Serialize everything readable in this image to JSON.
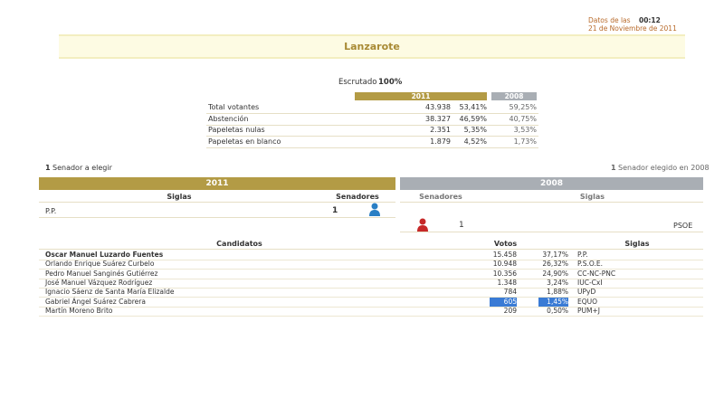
{
  "header": {
    "datos_label": "Datos de las",
    "time": "00:12",
    "date": "21 de Noviembre de 2011"
  },
  "title": "Lanzarote",
  "escrutado": {
    "label": "Escrutado",
    "value": "100%"
  },
  "summary": {
    "headers": [
      "2011",
      "2008"
    ],
    "rows": [
      [
        "Total votantes",
        "43.938",
        "53,41%",
        "59,25%"
      ],
      [
        "Abstención",
        "38.327",
        "46,59%",
        "40,75%"
      ],
      [
        "Papeletas nulas",
        "2.351",
        "5,35%",
        "3,53%"
      ],
      [
        "Papeletas en blanco",
        "1.879",
        "4,52%",
        "1,73%"
      ]
    ]
  },
  "senators": {
    "left_note": {
      "count": "1",
      "text": "Senador a elegir"
    },
    "right_note": {
      "count": "1",
      "text": "Senador elegido en 2008"
    },
    "year_2011": "2011",
    "year_2008": "2008",
    "headers_2011": [
      "Siglas",
      "Senadores"
    ],
    "headers_2008": [
      "Senadores",
      "Siglas"
    ],
    "rows_2011": [
      [
        "P.P.",
        "1"
      ]
    ],
    "rows_2008": [
      [
        "1",
        "PSOE"
      ]
    ]
  },
  "candidates": {
    "headers": [
      "Candidatos",
      "Votos",
      "Siglas"
    ],
    "rows": [
      [
        "Oscar Manuel Luzardo Fuentes",
        "15.458",
        "37,17%",
        "P.P."
      ],
      [
        "Orlando Enrique Suárez Curbelo",
        "10.948",
        "26,32%",
        "P.S.O.E."
      ],
      [
        "Pedro Manuel Sanginés Gutiérrez",
        "10.356",
        "24,90%",
        "CC-NC-PNC"
      ],
      [
        "José Manuel Vázquez Rodríguez",
        "1.348",
        "3,24%",
        "IUC-CxI"
      ],
      [
        "Ignacio Sáenz de Santa María Elizalde",
        "784",
        "1,88%",
        "UPyD"
      ],
      [
        "Gabriel Ángel Suárez Cabrera",
        "605",
        "1,45%",
        "EQUO"
      ],
      [
        "Martín Moreno Brito",
        "209",
        "0,50%",
        "PUM+J"
      ]
    ]
  }
}
